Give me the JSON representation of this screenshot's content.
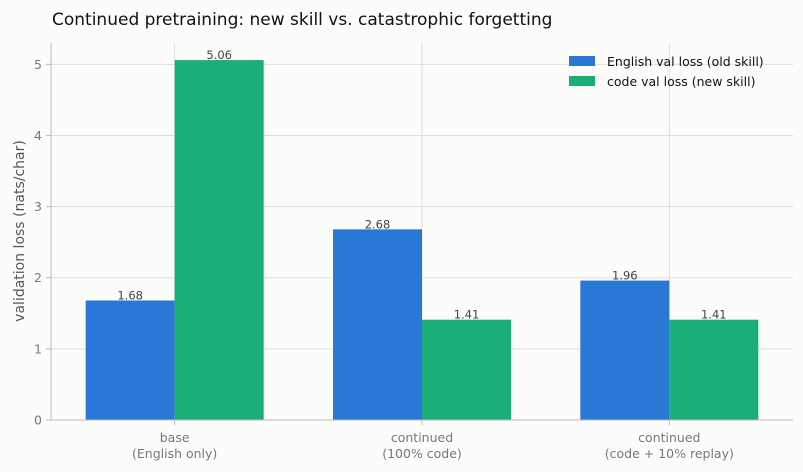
{
  "chart_data": {
    "type": "bar",
    "title": "Continued pretraining: new skill vs. catastrophic forgetting",
    "ylabel": "validation loss (nats/char)",
    "xlabel": "",
    "ylim": [
      0,
      5.3
    ],
    "yticks": [
      0,
      1,
      2,
      3,
      4,
      5
    ],
    "grid": true,
    "legend_position": "top-right",
    "categories": [
      [
        "base",
        "(English only)"
      ],
      [
        "continued",
        "(100% code)"
      ],
      [
        "continued",
        "(code + 10% replay)"
      ]
    ],
    "series": [
      {
        "name": "English val loss (old skill)",
        "color": "#2a78d6",
        "values": [
          1.68,
          2.68,
          1.96
        ],
        "labels": [
          "1.68",
          "2.68",
          "1.96"
        ]
      },
      {
        "name": "code val loss (new skill)",
        "color": "#1aaf78",
        "values": [
          5.06,
          1.41,
          1.41
        ],
        "labels": [
          "5.06",
          "1.41",
          "1.41"
        ]
      }
    ]
  }
}
